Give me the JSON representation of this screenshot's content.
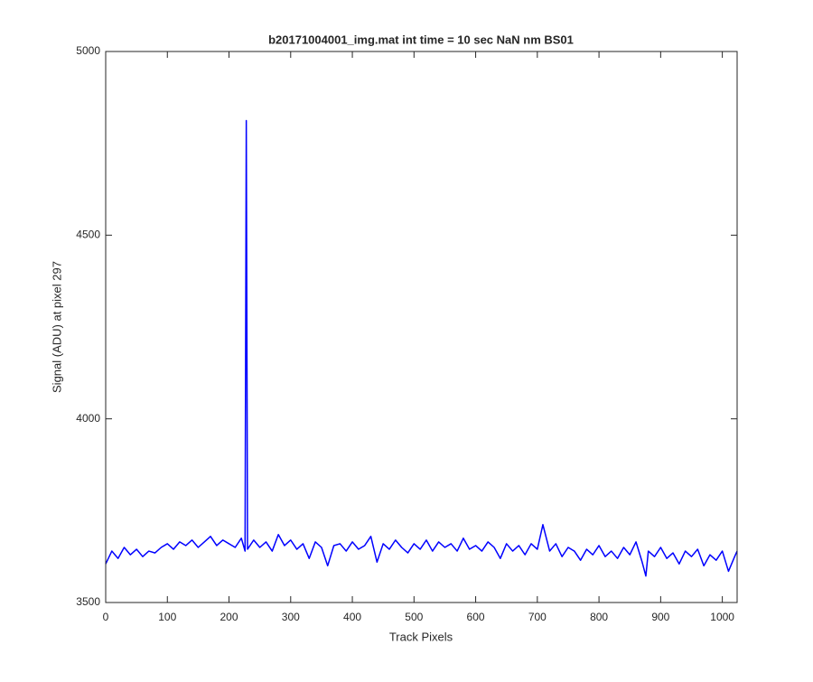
{
  "chart_data": {
    "type": "line",
    "title": "b20171004001_img.mat int time = 10 sec  NaN nm BS01",
    "xlabel": "Track Pixels",
    "ylabel": "Signal (ADU) at pixel 297",
    "xlim": [
      0,
      1024
    ],
    "ylim": [
      3500,
      5000
    ],
    "xticks": [
      0,
      100,
      200,
      300,
      400,
      500,
      600,
      700,
      800,
      900,
      1000
    ],
    "yticks": [
      3500,
      4000,
      4500,
      5000
    ],
    "grid": false,
    "x": [
      0,
      10,
      20,
      30,
      40,
      50,
      60,
      70,
      80,
      90,
      100,
      110,
      120,
      130,
      140,
      150,
      160,
      170,
      180,
      190,
      200,
      210,
      220,
      226,
      228,
      230,
      240,
      250,
      260,
      270,
      280,
      290,
      300,
      310,
      320,
      330,
      340,
      350,
      360,
      370,
      380,
      390,
      400,
      410,
      420,
      430,
      440,
      450,
      460,
      470,
      480,
      490,
      500,
      510,
      520,
      530,
      540,
      550,
      560,
      570,
      580,
      590,
      600,
      610,
      620,
      630,
      640,
      650,
      660,
      670,
      680,
      690,
      700,
      709,
      720,
      730,
      740,
      750,
      760,
      770,
      780,
      790,
      800,
      810,
      820,
      830,
      840,
      850,
      860,
      870,
      876,
      880,
      890,
      900,
      910,
      920,
      930,
      940,
      950,
      960,
      970,
      980,
      990,
      1000,
      1010,
      1020,
      1024
    ],
    "series": [
      {
        "name": "Signal",
        "color": "#0000ff",
        "values": [
          3605,
          3640,
          3620,
          3650,
          3630,
          3645,
          3625,
          3640,
          3635,
          3650,
          3660,
          3645,
          3665,
          3655,
          3670,
          3650,
          3665,
          3680,
          3655,
          3670,
          3660,
          3650,
          3675,
          3640,
          4812,
          3645,
          3670,
          3650,
          3665,
          3640,
          3685,
          3655,
          3670,
          3645,
          3660,
          3620,
          3665,
          3650,
          3600,
          3655,
          3660,
          3640,
          3665,
          3645,
          3655,
          3680,
          3610,
          3660,
          3645,
          3670,
          3650,
          3635,
          3660,
          3645,
          3670,
          3640,
          3665,
          3650,
          3660,
          3640,
          3675,
          3645,
          3655,
          3640,
          3665,
          3650,
          3620,
          3660,
          3640,
          3655,
          3630,
          3660,
          3645,
          3712,
          3640,
          3660,
          3625,
          3650,
          3640,
          3615,
          3645,
          3630,
          3655,
          3625,
          3640,
          3620,
          3650,
          3630,
          3665,
          3610,
          3572,
          3640,
          3625,
          3650,
          3620,
          3635,
          3605,
          3640,
          3625,
          3645,
          3600,
          3630,
          3615,
          3640,
          3585,
          3625,
          3640
        ]
      }
    ]
  }
}
